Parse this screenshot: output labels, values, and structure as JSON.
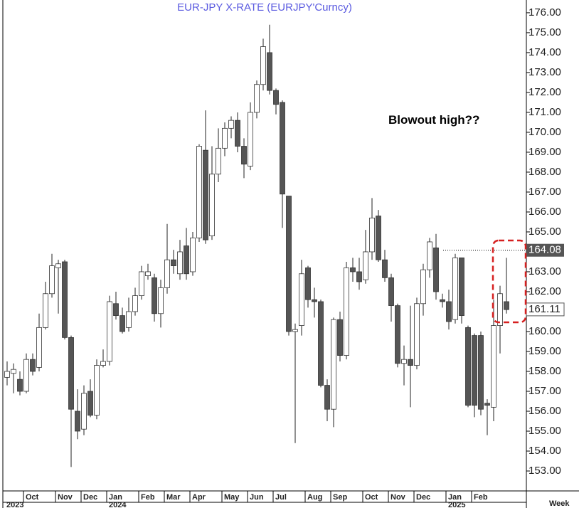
{
  "chart_data": {
    "type": "candlestick",
    "title": "EUR-JPY  X-RATE  (EURJPY'Curncy)",
    "annotation": "Blowout high??",
    "x_axis_label": "Week",
    "up_color": "#ffffff",
    "down_color": "#555555",
    "categories": [
      null,
      null,
      null,
      "Oct",
      null,
      null,
      null,
      null,
      "Nov",
      null,
      null,
      null,
      "Dec",
      null,
      null,
      null,
      "Jan",
      null,
      null,
      null,
      null,
      "Feb",
      null,
      null,
      null,
      "Mar",
      null,
      null,
      null,
      "Apr",
      null,
      null,
      null,
      null,
      "May",
      null,
      null,
      null,
      "Jun",
      null,
      null,
      null,
      "Jul",
      null,
      null,
      null,
      null,
      "Aug",
      null,
      null,
      null,
      "Sep",
      null,
      null,
      null,
      null,
      "Oct",
      null,
      null,
      null,
      "Nov",
      null,
      null,
      null,
      "Dec",
      null,
      null,
      null,
      null,
      "Jan",
      null,
      null,
      null,
      "Feb",
      null,
      null,
      null,
      null,
      null
    ],
    "years": [
      "2023",
      null,
      null,
      null,
      null,
      null,
      null,
      null,
      null,
      null,
      null,
      null,
      null,
      null,
      null,
      null,
      "2024",
      null,
      null,
      null,
      null,
      null,
      null,
      null,
      null,
      null,
      null,
      null,
      null,
      null,
      null,
      null,
      null,
      null,
      null,
      null,
      null,
      null,
      null,
      null,
      null,
      null,
      null,
      null,
      null,
      null,
      null,
      null,
      null,
      null,
      null,
      null,
      null,
      null,
      null,
      null,
      null,
      null,
      null,
      null,
      null,
      null,
      null,
      null,
      null,
      null,
      null,
      null,
      null,
      "2025",
      null,
      null,
      null,
      null,
      null,
      null,
      null,
      null,
      null
    ],
    "open": [
      157.7,
      157.9,
      157.6,
      157.0,
      158.6,
      158.2,
      160.2,
      161.9,
      163.2,
      163.5,
      159.7,
      156.0,
      155.1,
      157.0,
      155.8,
      158.3,
      158.5,
      161.4,
      160.8,
      160.2,
      161.0,
      161.8,
      162.8,
      162.7,
      160.9,
      162.2,
      163.6,
      162.9,
      164.3,
      163.0,
      164.7,
      169.1,
      164.8,
      167.9,
      169.2,
      170.2,
      170.6,
      169.3,
      168.3,
      171.0,
      172.4,
      174.0,
      172.1,
      171.5,
      166.8,
      160.0,
      160.3,
      163.2,
      161.6,
      161.5,
      157.3,
      156.1,
      160.6,
      158.8,
      163.2,
      163.0,
      162.6,
      164.0,
      165.8,
      163.6,
      162.7,
      161.3,
      158.4,
      158.6,
      158.3,
      161.4,
      163.1,
      164.2,
      161.6,
      161.5,
      160.6,
      163.7,
      160.2,
      159.8,
      159.8,
      156.4,
      156.2,
      160.3,
      161.5
    ],
    "high": [
      158.5,
      158.4,
      158.0,
      158.9,
      158.9,
      160.9,
      162.5,
      163.9,
      163.6,
      163.6,
      159.8,
      157.1,
      157.3,
      157.6,
      158.6,
      159.1,
      161.8,
      162.0,
      161.2,
      161.7,
      162.2,
      163.3,
      163.4,
      162.9,
      162.6,
      165.4,
      164.1,
      164.6,
      165.2,
      165.0,
      169.4,
      171.1,
      169.3,
      170.2,
      170.5,
      170.8,
      171.0,
      169.7,
      171.5,
      172.6,
      174.7,
      175.4,
      172.2,
      171.6,
      166.8,
      160.4,
      163.6,
      163.3,
      162.2,
      161.6,
      157.6,
      160.7,
      161.0,
      163.5,
      163.7,
      163.7,
      165.1,
      166.7,
      166.1,
      164.1,
      162.9,
      161.4,
      159.3,
      161.3,
      161.7,
      163.4,
      164.7,
      164.9,
      161.9,
      162.1,
      163.9,
      163.7,
      160.3,
      159.9,
      160.0,
      156.6,
      161.6,
      162.3,
      163.7
    ],
    "low": [
      157.3,
      156.9,
      156.8,
      156.9,
      157.8,
      158.0,
      160.1,
      161.7,
      160.9,
      159.6,
      153.2,
      154.6,
      154.8,
      155.7,
      155.6,
      158.2,
      158.3,
      160.6,
      159.9,
      160.0,
      160.8,
      161.6,
      162.6,
      160.5,
      160.2,
      161.9,
      162.9,
      162.6,
      162.6,
      162.8,
      164.5,
      164.4,
      164.6,
      167.5,
      168.8,
      169.7,
      169.0,
      167.7,
      168.1,
      170.7,
      172.1,
      171.9,
      170.9,
      165.2,
      159.8,
      154.4,
      159.8,
      161.2,
      160.7,
      157.2,
      155.5,
      155.2,
      158.5,
      158.6,
      162.5,
      162.1,
      162.4,
      163.6,
      163.5,
      162.5,
      160.5,
      158.2,
      157.3,
      156.2,
      158.1,
      160.8,
      162.7,
      161.6,
      161.2,
      160.1,
      160.4,
      160.4,
      156.2,
      155.7,
      155.8,
      154.8,
      155.5,
      158.9,
      160.9
    ],
    "close": [
      158.0,
      158.1,
      157.0,
      158.6,
      158.0,
      160.2,
      161.9,
      163.3,
      163.4,
      159.7,
      156.1,
      155.0,
      156.9,
      155.8,
      158.3,
      158.5,
      161.5,
      160.8,
      160.0,
      161.0,
      161.8,
      163.0,
      163.0,
      160.9,
      162.2,
      163.6,
      163.3,
      164.0,
      162.9,
      164.7,
      169.3,
      164.6,
      167.9,
      169.2,
      170.2,
      170.6,
      169.3,
      168.4,
      171.0,
      172.4,
      174.3,
      172.1,
      171.4,
      166.9,
      160.0,
      160.1,
      162.9,
      161.6,
      161.5,
      157.3,
      156.1,
      160.6,
      158.8,
      163.2,
      163.0,
      162.5,
      164.0,
      165.7,
      163.6,
      162.7,
      161.3,
      158.4,
      158.6,
      158.3,
      161.4,
      163.1,
      164.5,
      162.0,
      161.5,
      160.5,
      163.7,
      160.8,
      156.3,
      156.3,
      156.1,
      156.3,
      160.3,
      161.9,
      161.1
    ],
    "ylim": [
      152,
      176.64
    ],
    "yticks": [
      {
        "value": 153,
        "label": "153.00"
      },
      {
        "value": 154,
        "label": "154.00"
      },
      {
        "value": 155,
        "label": "155.00"
      },
      {
        "value": 156,
        "label": "156.00"
      },
      {
        "value": 157,
        "label": "157.00"
      },
      {
        "value": 158,
        "label": "158.00"
      },
      {
        "value": 159,
        "label": "159.00"
      },
      {
        "value": 160,
        "label": "160.00"
      },
      {
        "value": 161,
        "label": "161.00"
      },
      {
        "value": 162,
        "label": "162.00"
      },
      {
        "value": 163,
        "label": "163.00"
      },
      {
        "value": 164,
        "label": "164.00"
      },
      {
        "value": 165,
        "label": "165.00"
      },
      {
        "value": 166,
        "label": "166.00"
      },
      {
        "value": 167,
        "label": "167.00"
      },
      {
        "value": 168,
        "label": "168.00"
      },
      {
        "value": 169,
        "label": "169.00"
      },
      {
        "value": 170,
        "label": "170.00"
      },
      {
        "value": 171,
        "label": "171.00"
      },
      {
        "value": 172,
        "label": "172.00"
      },
      {
        "value": 173,
        "label": "173.00"
      },
      {
        "value": 174,
        "label": "174.00"
      },
      {
        "value": 175,
        "label": "175.00"
      },
      {
        "value": 176,
        "label": "176.00"
      }
    ],
    "price_markers": [
      164.08,
      161.11
    ]
  }
}
